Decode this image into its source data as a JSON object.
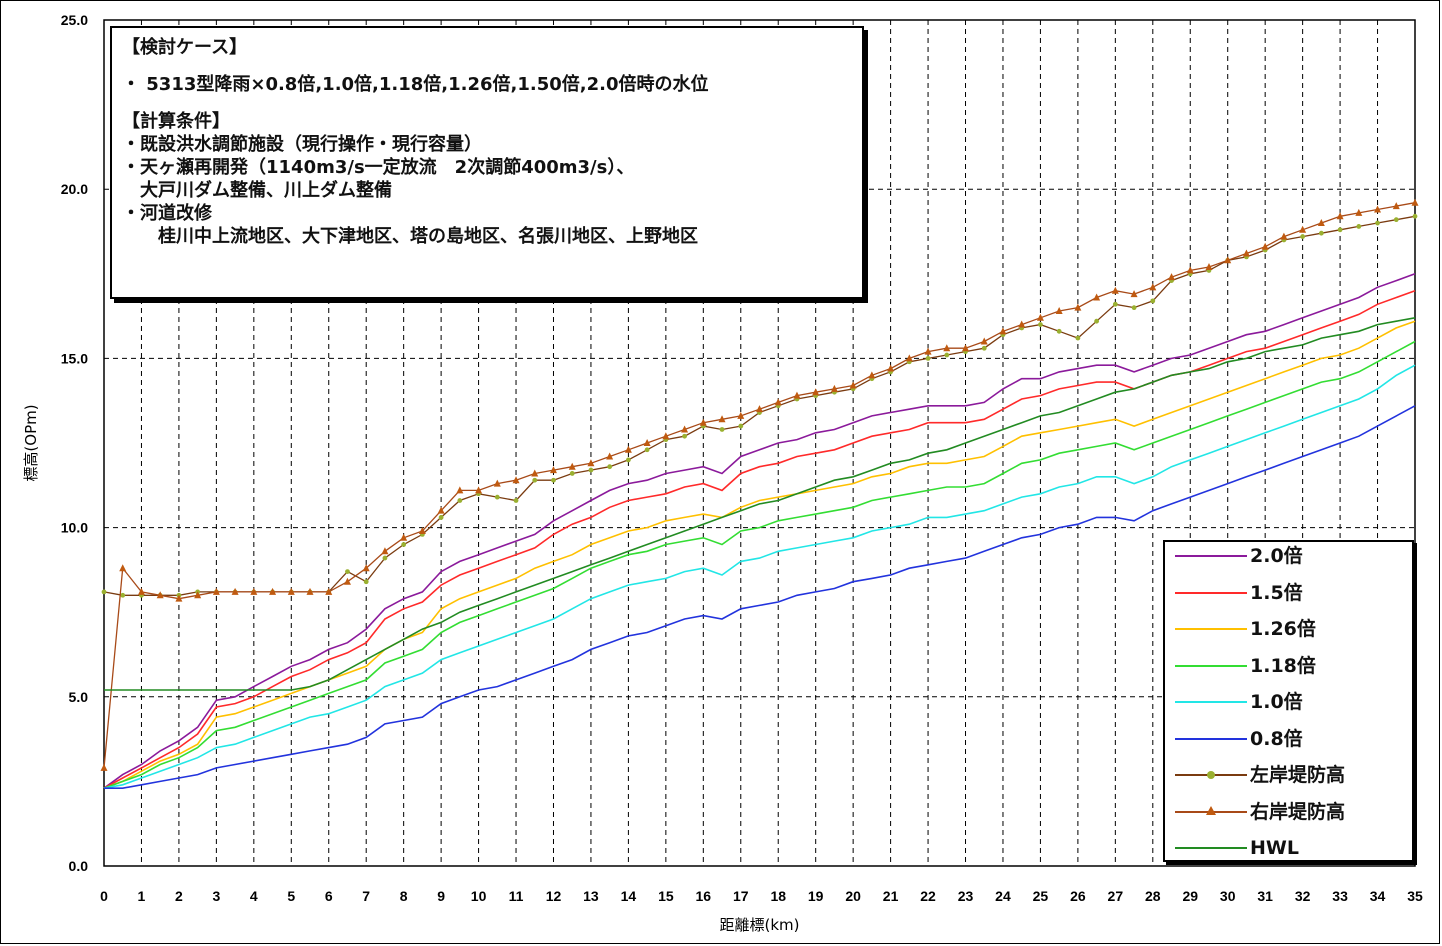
{
  "chart_data": {
    "type": "line",
    "xlabel": "距離標(km)",
    "ylabel": "標高(OPm)",
    "xlim": [
      0,
      35
    ],
    "ylim": [
      0,
      25
    ],
    "x_ticks": [
      "0",
      "1",
      "2",
      "3",
      "4",
      "5",
      "6",
      "7",
      "8",
      "9",
      "10",
      "11",
      "12",
      "13",
      "14",
      "15",
      "16",
      "17",
      "18",
      "19",
      "20",
      "21",
      "22",
      "23",
      "24",
      "25",
      "26",
      "27",
      "28",
      "29",
      "30",
      "31",
      "32",
      "33",
      "34",
      "35"
    ],
    "y_ticks": [
      "0.0",
      "5.0",
      "10.0",
      "15.0",
      "20.0",
      "25.0"
    ],
    "grid": true,
    "legend_position": "bottom-right",
    "x": [
      0.0,
      0.5,
      1.0,
      1.5,
      2.0,
      2.5,
      3.0,
      3.5,
      4.0,
      4.5,
      5.0,
      5.5,
      6.0,
      6.5,
      7.0,
      7.5,
      8.0,
      8.5,
      9.0,
      9.5,
      10.0,
      10.5,
      11.0,
      11.5,
      12.0,
      12.5,
      13.0,
      13.5,
      14.0,
      14.5,
      15.0,
      15.5,
      16.0,
      16.5,
      17.0,
      17.5,
      18.0,
      18.5,
      19.0,
      19.5,
      20.0,
      20.5,
      21.0,
      21.5,
      22.0,
      22.5,
      23.0,
      23.5,
      24.0,
      24.5,
      25.0,
      25.5,
      26.0,
      26.5,
      27.0,
      27.5,
      28.0,
      28.5,
      29.0,
      29.5,
      30.0,
      30.5,
      31.0,
      31.5,
      32.0,
      32.5,
      33.0,
      33.5,
      34.0,
      34.5,
      35.0
    ],
    "series": [
      {
        "name": "2.0倍",
        "color": "#8b1a9b",
        "marker": "none",
        "values": [
          2.3,
          2.7,
          3.0,
          3.4,
          3.7,
          4.1,
          4.9,
          5.0,
          5.3,
          5.6,
          5.9,
          6.1,
          6.4,
          6.6,
          7.0,
          7.6,
          7.9,
          8.1,
          8.7,
          9.0,
          9.2,
          9.4,
          9.6,
          9.8,
          10.2,
          10.5,
          10.8,
          11.1,
          11.3,
          11.4,
          11.6,
          11.7,
          11.8,
          11.6,
          12.1,
          12.3,
          12.5,
          12.6,
          12.8,
          12.9,
          13.1,
          13.3,
          13.4,
          13.5,
          13.6,
          13.6,
          13.6,
          13.7,
          14.1,
          14.4,
          14.4,
          14.6,
          14.7,
          14.8,
          14.8,
          14.6,
          14.8,
          15.0,
          15.1,
          15.3,
          15.5,
          15.7,
          15.8,
          16.0,
          16.2,
          16.4,
          16.6,
          16.8,
          17.1,
          17.3,
          17.5
        ]
      },
      {
        "name": "1.5倍",
        "color": "#ff2a2a",
        "marker": "none",
        "values": [
          2.3,
          2.6,
          2.9,
          3.2,
          3.5,
          3.9,
          4.7,
          4.8,
          5.0,
          5.3,
          5.6,
          5.8,
          6.1,
          6.3,
          6.6,
          7.3,
          7.6,
          7.8,
          8.3,
          8.6,
          8.8,
          9.0,
          9.2,
          9.4,
          9.8,
          10.1,
          10.3,
          10.6,
          10.8,
          10.9,
          11.0,
          11.2,
          11.3,
          11.1,
          11.6,
          11.8,
          11.9,
          12.1,
          12.2,
          12.3,
          12.5,
          12.7,
          12.8,
          12.9,
          13.1,
          13.1,
          13.1,
          13.2,
          13.5,
          13.8,
          13.9,
          14.1,
          14.2,
          14.3,
          14.3,
          14.1,
          14.3,
          14.5,
          14.6,
          14.8,
          15.0,
          15.2,
          15.3,
          15.5,
          15.7,
          15.9,
          16.1,
          16.3,
          16.6,
          16.8,
          17.0
        ]
      },
      {
        "name": "1.26倍",
        "color": "#ffc000",
        "marker": "none",
        "values": [
          2.3,
          2.5,
          2.8,
          3.1,
          3.3,
          3.6,
          4.4,
          4.5,
          4.7,
          4.9,
          5.1,
          5.3,
          5.5,
          5.7,
          5.9,
          6.4,
          6.7,
          6.9,
          7.6,
          7.9,
          8.1,
          8.3,
          8.5,
          8.8,
          9.0,
          9.2,
          9.5,
          9.7,
          9.9,
          10.0,
          10.2,
          10.3,
          10.4,
          10.3,
          10.6,
          10.8,
          10.9,
          11.0,
          11.1,
          11.2,
          11.3,
          11.5,
          11.6,
          11.8,
          11.9,
          11.9,
          12.0,
          12.1,
          12.4,
          12.7,
          12.8,
          12.9,
          13.0,
          13.1,
          13.2,
          13.0,
          13.2,
          13.4,
          13.6,
          13.8,
          14.0,
          14.2,
          14.4,
          14.6,
          14.8,
          15.0,
          15.1,
          15.3,
          15.6,
          15.9,
          16.1
        ]
      },
      {
        "name": "1.18倍",
        "color": "#33dd33",
        "marker": "none",
        "values": [
          2.3,
          2.5,
          2.7,
          3.0,
          3.2,
          3.5,
          4.0,
          4.1,
          4.3,
          4.5,
          4.7,
          4.9,
          5.1,
          5.3,
          5.5,
          6.0,
          6.2,
          6.4,
          6.9,
          7.2,
          7.4,
          7.6,
          7.8,
          8.0,
          8.2,
          8.5,
          8.8,
          9.0,
          9.2,
          9.3,
          9.5,
          9.6,
          9.7,
          9.5,
          9.9,
          10.0,
          10.2,
          10.3,
          10.4,
          10.5,
          10.6,
          10.8,
          10.9,
          11.0,
          11.1,
          11.2,
          11.2,
          11.3,
          11.6,
          11.9,
          12.0,
          12.2,
          12.3,
          12.4,
          12.5,
          12.3,
          12.5,
          12.7,
          12.9,
          13.1,
          13.3,
          13.5,
          13.7,
          13.9,
          14.1,
          14.3,
          14.4,
          14.6,
          14.9,
          15.2,
          15.5
        ]
      },
      {
        "name": "1.0倍",
        "color": "#22e6e6",
        "marker": "none",
        "values": [
          2.3,
          2.4,
          2.6,
          2.8,
          3.0,
          3.2,
          3.5,
          3.6,
          3.8,
          4.0,
          4.2,
          4.4,
          4.5,
          4.7,
          4.9,
          5.3,
          5.5,
          5.7,
          6.1,
          6.3,
          6.5,
          6.7,
          6.9,
          7.1,
          7.3,
          7.6,
          7.9,
          8.1,
          8.3,
          8.4,
          8.5,
          8.7,
          8.8,
          8.6,
          9.0,
          9.1,
          9.3,
          9.4,
          9.5,
          9.6,
          9.7,
          9.9,
          10.0,
          10.1,
          10.3,
          10.3,
          10.4,
          10.5,
          10.7,
          10.9,
          11.0,
          11.2,
          11.3,
          11.5,
          11.5,
          11.3,
          11.5,
          11.8,
          12.0,
          12.2,
          12.4,
          12.6,
          12.8,
          13.0,
          13.2,
          13.4,
          13.6,
          13.8,
          14.1,
          14.5,
          14.8
        ]
      },
      {
        "name": "0.8倍",
        "color": "#2233dd",
        "marker": "none",
        "values": [
          2.3,
          2.3,
          2.4,
          2.5,
          2.6,
          2.7,
          2.9,
          3.0,
          3.1,
          3.2,
          3.3,
          3.4,
          3.5,
          3.6,
          3.8,
          4.2,
          4.3,
          4.4,
          4.8,
          5.0,
          5.2,
          5.3,
          5.5,
          5.7,
          5.9,
          6.1,
          6.4,
          6.6,
          6.8,
          6.9,
          7.1,
          7.3,
          7.4,
          7.3,
          7.6,
          7.7,
          7.8,
          8.0,
          8.1,
          8.2,
          8.4,
          8.5,
          8.6,
          8.8,
          8.9,
          9.0,
          9.1,
          9.3,
          9.5,
          9.7,
          9.8,
          10.0,
          10.1,
          10.3,
          10.3,
          10.2,
          10.5,
          10.7,
          10.9,
          11.1,
          11.3,
          11.5,
          11.7,
          11.9,
          12.1,
          12.3,
          12.5,
          12.7,
          13.0,
          13.3,
          13.6
        ]
      },
      {
        "name": "左岸堤防高",
        "color": "#7a3b10",
        "marker": "circle",
        "marker_color": "#9ab030",
        "values": [
          8.1,
          8.0,
          8.0,
          8.0,
          8.0,
          8.1,
          8.1,
          8.1,
          8.1,
          8.1,
          8.1,
          8.1,
          8.1,
          8.7,
          8.4,
          9.1,
          9.5,
          9.8,
          10.3,
          10.8,
          11.0,
          10.9,
          10.8,
          11.4,
          11.4,
          11.6,
          11.7,
          11.8,
          12.0,
          12.3,
          12.6,
          12.7,
          13.0,
          12.9,
          13.0,
          13.4,
          13.6,
          13.8,
          13.9,
          14.0,
          14.1,
          14.4,
          14.6,
          14.9,
          15.0,
          15.1,
          15.2,
          15.3,
          15.7,
          15.9,
          16.0,
          15.8,
          15.6,
          16.1,
          16.6,
          16.5,
          16.7,
          17.3,
          17.5,
          17.6,
          17.9,
          18.0,
          18.2,
          18.5,
          18.6,
          18.7,
          18.8,
          18.9,
          19.0,
          19.1,
          19.2
        ]
      },
      {
        "name": "右岸堤防高",
        "color": "#a84a18",
        "marker": "triangle",
        "marker_color": "#c05a10",
        "values": [
          2.9,
          8.8,
          8.1,
          8.0,
          7.9,
          8.0,
          8.1,
          8.1,
          8.1,
          8.1,
          8.1,
          8.1,
          8.1,
          8.4,
          8.8,
          9.3,
          9.7,
          9.9,
          10.5,
          11.1,
          11.1,
          11.3,
          11.4,
          11.6,
          11.7,
          11.8,
          11.9,
          12.1,
          12.3,
          12.5,
          12.7,
          12.9,
          13.1,
          13.2,
          13.3,
          13.5,
          13.7,
          13.9,
          14.0,
          14.1,
          14.2,
          14.5,
          14.7,
          15.0,
          15.2,
          15.3,
          15.3,
          15.5,
          15.8,
          16.0,
          16.2,
          16.4,
          16.5,
          16.8,
          17.0,
          16.9,
          17.1,
          17.4,
          17.6,
          17.7,
          17.9,
          18.1,
          18.3,
          18.6,
          18.8,
          19.0,
          19.2,
          19.3,
          19.4,
          19.5,
          19.6
        ]
      },
      {
        "name": "HWL",
        "color": "#228b22",
        "marker": "none",
        "values": [
          5.2,
          5.2,
          5.2,
          5.2,
          5.2,
          5.2,
          5.2,
          5.2,
          5.2,
          5.2,
          5.2,
          5.3,
          5.5,
          5.8,
          6.1,
          6.4,
          6.7,
          7.0,
          7.2,
          7.5,
          7.7,
          7.9,
          8.1,
          8.3,
          8.5,
          8.7,
          8.9,
          9.1,
          9.3,
          9.5,
          9.7,
          9.9,
          10.1,
          10.3,
          10.5,
          10.7,
          10.8,
          11.0,
          11.2,
          11.4,
          11.5,
          11.7,
          11.9,
          12.0,
          12.2,
          12.3,
          12.5,
          12.7,
          12.9,
          13.1,
          13.3,
          13.4,
          13.6,
          13.8,
          14.0,
          14.1,
          14.3,
          14.5,
          14.6,
          14.7,
          14.9,
          15.0,
          15.2,
          15.3,
          15.4,
          15.6,
          15.7,
          15.8,
          16.0,
          16.1,
          16.2
        ]
      }
    ]
  },
  "info_box": {
    "lines": [
      "【検討ケース】",
      "・ 5313型降雨×0.8倍,1.0倍,1.18倍,1.26倍,1.50倍,2.0倍時の水位",
      "【計算条件】",
      "・既設洪水調節施設（現行操作・現行容量）",
      "・天ヶ瀬再開発（1140m3/s一定放流　2次調節400m3/s）、",
      "　大戸川ダム整備、川上ダム整備",
      "・河道改修",
      "　　桂川中上流地区、大下津地区、塔の島地区、名張川地区、上野地区"
    ]
  }
}
